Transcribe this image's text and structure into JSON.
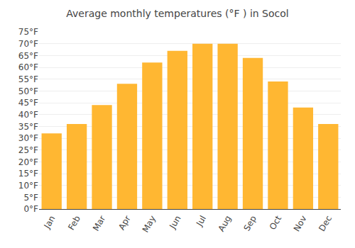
{
  "chart_data": {
    "type": "bar",
    "title": "Average monthly temperatures (°F ) in Socol",
    "categories": [
      "Jan",
      "Feb",
      "Mar",
      "Apr",
      "May",
      "Jun",
      "Jul",
      "Aug",
      "Sep",
      "Oct",
      "Nov",
      "Dec"
    ],
    "values": [
      32,
      36,
      44,
      53,
      62,
      67,
      70,
      70,
      64,
      54,
      43,
      36
    ],
    "color": "#FFB732",
    "ylim": [
      0,
      75
    ],
    "yticks": [
      {
        "value": 0,
        "label": "0°F"
      },
      {
        "value": 5,
        "label": "5°F"
      },
      {
        "value": 10,
        "label": "10°F"
      },
      {
        "value": 15,
        "label": "15°F"
      },
      {
        "value": 20,
        "label": "20°F"
      },
      {
        "value": 25,
        "label": "25°F"
      },
      {
        "value": 30,
        "label": "30°F"
      },
      {
        "value": 35,
        "label": "35°F"
      },
      {
        "value": 40,
        "label": "40°F"
      },
      {
        "value": 45,
        "label": "45°F"
      },
      {
        "value": 50,
        "label": "50°F"
      },
      {
        "value": 55,
        "label": "55°F"
      },
      {
        "value": 60,
        "label": "60°F"
      },
      {
        "value": 65,
        "label": "65°F"
      },
      {
        "value": 70,
        "label": "70°F"
      },
      {
        "value": 75,
        "label": "75°F"
      }
    ],
    "grid": true
  }
}
